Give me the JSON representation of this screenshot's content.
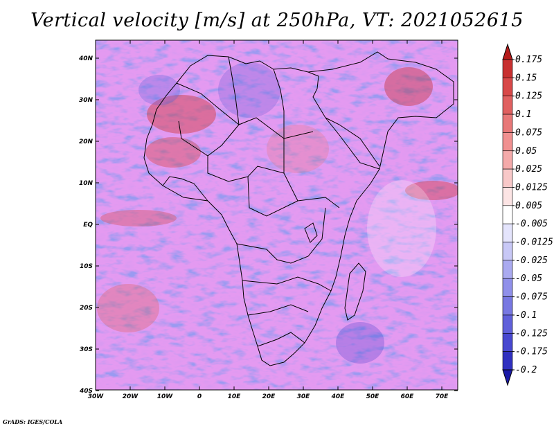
{
  "title": "Vertical velocity [m/s] at 250hPa, VT: 2021052615",
  "credit": "GrADS: IGES/COLA",
  "lat_labels": [
    "40N",
    "30N",
    "20N",
    "10N",
    "EQ",
    "10S",
    "20S",
    "30S",
    "40S"
  ],
  "lon_labels": [
    "30W",
    "20W",
    "10W",
    "0",
    "10E",
    "20E",
    "30E",
    "40E",
    "50E",
    "60E",
    "70E"
  ],
  "colorbar": {
    "levels": [
      "0.175",
      "0.15",
      "0.125",
      "0.1",
      "0.075",
      "0.05",
      "0.025",
      "0.0125",
      "0.005",
      "-0.005",
      "-0.0125",
      "-0.025",
      "-0.05",
      "-0.075",
      "-0.1",
      "-0.125",
      "-0.175",
      "-0.2"
    ],
    "colors": [
      "#b41a1a",
      "#c83030",
      "#d84848",
      "#e06060",
      "#e87878",
      "#f09090",
      "#f4aaaa",
      "#f8c8c8",
      "#fce4e4",
      "#ffffff",
      "#e4e4fc",
      "#c8c8f6",
      "#aaaaf0",
      "#9090ea",
      "#7878e2",
      "#6060da",
      "#4848d0",
      "#3030c0",
      "#1a1aa8"
    ]
  }
}
